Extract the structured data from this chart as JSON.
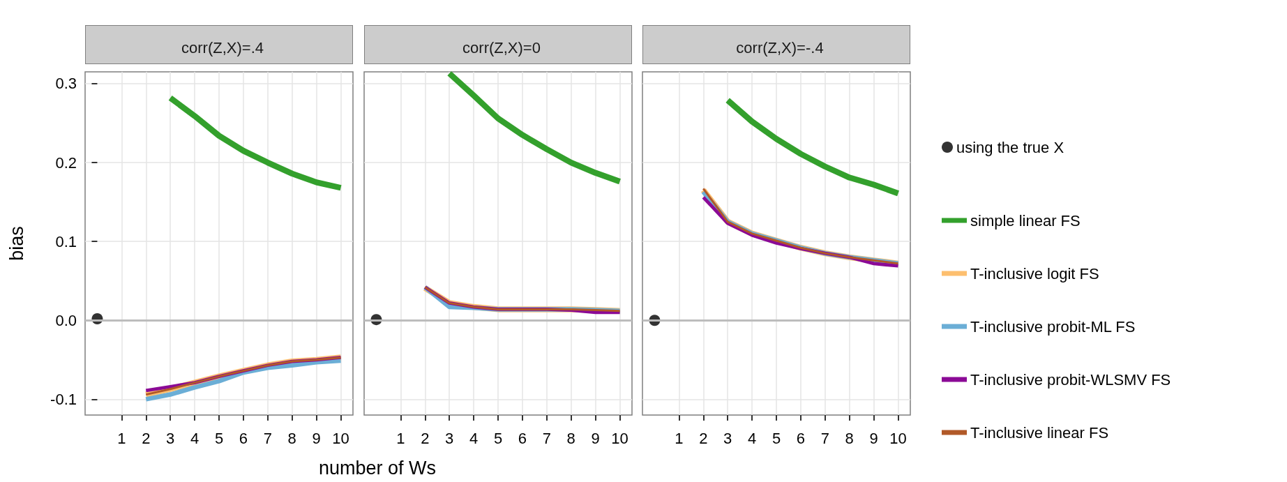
{
  "chart_data": [
    {
      "type": "line",
      "title": "corr(Z,X)=.4",
      "ylabel": "bias",
      "xlim": [
        -0.5,
        10.5
      ],
      "xticks": [
        1,
        2,
        3,
        4,
        5,
        6,
        7,
        8,
        9,
        10
      ],
      "ylim": [
        -0.12,
        0.315
      ],
      "yticks": [
        {
          "value": -0.1,
          "label": "-0.1"
        },
        {
          "value": 0,
          "label": "0.0"
        },
        {
          "value": 0.1,
          "label": "0.1"
        },
        {
          "value": 0.2,
          "label": "0.2"
        },
        {
          "value": 0.3,
          "label": "0.3"
        }
      ],
      "grid": true,
      "legend": false,
      "ref_lines": [
        {
          "axis": "y",
          "value": 0,
          "color": "#bdbdbd"
        }
      ],
      "series": [
        {
          "type": "scatter",
          "marker": "circle",
          "color": "#000000",
          "x": [
            0
          ],
          "values": [
            0.002
          ]
        },
        {
          "color": "#33a02c",
          "x": [
            3,
            4,
            5,
            6,
            7,
            8,
            9,
            10
          ],
          "values": [
            0.282,
            0.259,
            0.234,
            0.215,
            0.2,
            0.186,
            0.175,
            0.168
          ]
        },
        {
          "color": "#fdbf6f",
          "x": [
            2,
            3,
            4,
            5,
            6,
            7,
            8,
            9,
            10
          ],
          "values": [
            -0.094,
            -0.087,
            -0.079,
            -0.071,
            -0.064,
            -0.057,
            -0.052,
            -0.05,
            -0.047
          ]
        },
        {
          "color": "#6baed6",
          "x": [
            2,
            3,
            4,
            5,
            6,
            7,
            8,
            9,
            10
          ],
          "values": [
            -0.1,
            -0.094,
            -0.085,
            -0.077,
            -0.066,
            -0.06,
            -0.057,
            -0.053,
            -0.051
          ]
        },
        {
          "color": "#8b0a96",
          "x": [
            2,
            3,
            4,
            5,
            6,
            7,
            8,
            9,
            10
          ],
          "values": [
            -0.089,
            -0.084,
            -0.079,
            -0.071,
            -0.064,
            -0.057,
            -0.052,
            -0.05,
            -0.047
          ]
        },
        {
          "color": "#b15928",
          "x": [
            2,
            3,
            4,
            5,
            6,
            7,
            8,
            9,
            10
          ],
          "values": [
            -0.094,
            -0.087,
            -0.079,
            -0.071,
            -0.064,
            -0.057,
            -0.052,
            -0.05,
            -0.047
          ]
        }
      ]
    },
    {
      "type": "line",
      "title": "corr(Z,X)=0",
      "xlabel": "number of Ws",
      "xlim": [
        -0.5,
        10.5
      ],
      "xticks": [
        1,
        2,
        3,
        4,
        5,
        6,
        7,
        8,
        9,
        10
      ],
      "ylim": [
        -0.12,
        0.315
      ],
      "yticks": [
        -0.1,
        0,
        0.1,
        0.2,
        0.3
      ],
      "grid": true,
      "legend": false,
      "tick_labels": "x",
      "ref_lines": [
        {
          "axis": "y",
          "value": 0,
          "color": "#bdbdbd"
        }
      ],
      "series": [
        {
          "type": "scatter",
          "marker": "circle",
          "color": "#000000",
          "x": [
            0
          ],
          "values": [
            0.001
          ]
        },
        {
          "color": "#33a02c",
          "x": [
            3,
            4,
            5,
            6,
            7,
            8,
            9,
            10
          ],
          "values": [
            0.313,
            0.285,
            0.256,
            0.235,
            0.217,
            0.2,
            0.187,
            0.176
          ]
        },
        {
          "color": "#fdbf6f",
          "x": [
            2,
            3,
            4,
            5,
            6,
            7,
            8,
            9,
            10
          ],
          "values": [
            0.041,
            0.022,
            0.017,
            0.014,
            0.014,
            0.014,
            0.014,
            0.013,
            0.012
          ]
        },
        {
          "color": "#6baed6",
          "x": [
            2,
            3,
            4,
            5,
            6,
            7,
            8,
            9,
            10
          ],
          "values": [
            0.042,
            0.017,
            0.016,
            0.014,
            0.014,
            0.014,
            0.014,
            0.013,
            0.012
          ]
        },
        {
          "color": "#8b0a96",
          "x": [
            2,
            3,
            4,
            5,
            6,
            7,
            8,
            9,
            10
          ],
          "values": [
            0.042,
            0.022,
            0.017,
            0.014,
            0.014,
            0.014,
            0.013,
            0.01,
            0.01
          ]
        },
        {
          "color": "#b15928",
          "x": [
            2,
            3,
            4,
            5,
            6,
            7,
            8,
            9,
            10
          ],
          "values": [
            0.042,
            0.022,
            0.017,
            0.014,
            0.014,
            0.014,
            0.014,
            0.013,
            0.012
          ]
        }
      ]
    },
    {
      "type": "line",
      "title": "corr(Z,X)=-.4",
      "xlim": [
        -0.5,
        10.5
      ],
      "xticks": [
        1,
        2,
        3,
        4,
        5,
        6,
        7,
        8,
        9,
        10
      ],
      "ylim": [
        -0.12,
        0.315
      ],
      "yticks": [
        -0.1,
        0,
        0.1,
        0.2,
        0.3
      ],
      "grid": true,
      "legend": "right",
      "tick_labels": "x",
      "ref_lines": [
        {
          "axis": "y",
          "value": 0,
          "color": "#bdbdbd"
        }
      ],
      "series": [
        {
          "name": "using the true X",
          "type": "scatter",
          "marker": "circle",
          "color": "#000000",
          "x": [
            0
          ],
          "values": [
            0.0
          ]
        },
        {
          "name": "simple linear FS",
          "color": "#33a02c",
          "x": [
            3,
            4,
            5,
            6,
            7,
            8,
            9,
            10
          ],
          "values": [
            0.279,
            0.252,
            0.23,
            0.211,
            0.195,
            0.181,
            0.172,
            0.161
          ]
        },
        {
          "name": "T-inclusive logit FS",
          "color": "#fdbf6f",
          "x": [
            2,
            3,
            4,
            5,
            6,
            7,
            8,
            9,
            10
          ],
          "values": [
            0.165,
            0.125,
            0.11,
            0.101,
            0.092,
            0.085,
            0.08,
            0.076,
            0.072
          ]
        },
        {
          "name": "T-inclusive probit-ML FS",
          "color": "#6baed6",
          "x": [
            2,
            3,
            4,
            5,
            6,
            7,
            8,
            9,
            10
          ],
          "values": [
            0.163,
            0.125,
            0.11,
            0.101,
            0.092,
            0.085,
            0.08,
            0.076,
            0.072
          ]
        },
        {
          "name": "T-inclusive probit-WLSMV FS",
          "color": "#8b0a96",
          "x": [
            2,
            3,
            4,
            5,
            6,
            7,
            8,
            9,
            10
          ],
          "values": [
            0.156,
            0.123,
            0.108,
            0.098,
            0.091,
            0.085,
            0.08,
            0.072,
            0.069
          ]
        },
        {
          "name": "T-inclusive linear FS",
          "color": "#b15928",
          "x": [
            2,
            3,
            4,
            5,
            6,
            7,
            8,
            9,
            10
          ],
          "values": [
            0.167,
            0.125,
            0.11,
            0.101,
            0.092,
            0.085,
            0.08,
            0.076,
            0.072
          ]
        }
      ]
    }
  ]
}
